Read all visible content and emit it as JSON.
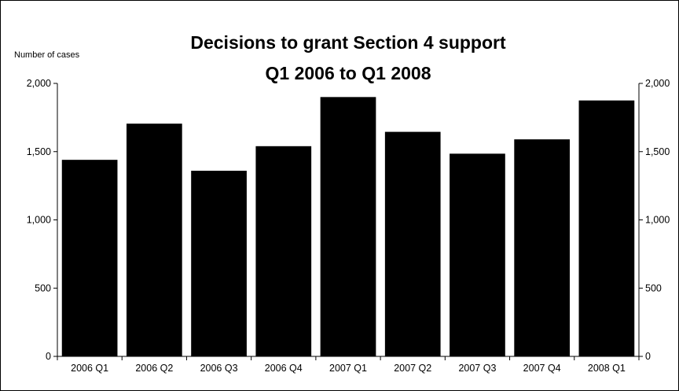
{
  "chart_data": {
    "type": "bar",
    "title": "Decisions to grant Section 4 support",
    "subtitle": "Q1 2006 to Q1 2008",
    "ylabel": "Number of cases",
    "xlabel": "",
    "categories": [
      "2006 Q1",
      "2006 Q2",
      "2006 Q3",
      "2006 Q4",
      "2007 Q1",
      "2007 Q2",
      "2007 Q3",
      "2007 Q4",
      "2008 Q1"
    ],
    "values": [
      1440,
      1705,
      1360,
      1540,
      1900,
      1645,
      1485,
      1590,
      1875
    ],
    "ylim": [
      0,
      2000
    ],
    "yticks": [
      0,
      500,
      1000,
      1500,
      2000
    ],
    "ytick_labels_left": [
      "0",
      "500",
      "1,000",
      "1,500",
      "2,000"
    ],
    "ytick_labels_right": [
      "0",
      "500",
      "1,000",
      "1,500",
      "2,000"
    ],
    "secondary_y_axis": true,
    "grid": false,
    "legend": "none",
    "bar_color": "#000000"
  }
}
